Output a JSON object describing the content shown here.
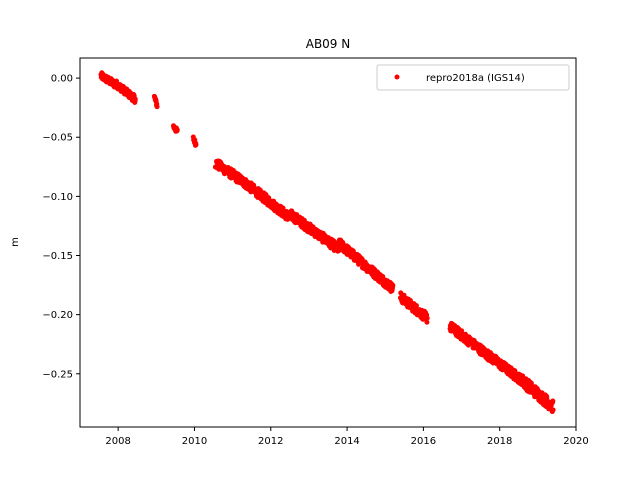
{
  "chart_data": {
    "type": "scatter",
    "title": "AB09 N",
    "xlabel": "",
    "ylabel": "m",
    "xlim": [
      2007.0,
      2020.0
    ],
    "ylim": [
      -0.295,
      0.017
    ],
    "xticks": [
      2008,
      2010,
      2012,
      2014,
      2016,
      2018,
      2020
    ],
    "xtick_labels": [
      "2008",
      "2010",
      "2012",
      "2014",
      "2016",
      "2018",
      "2020"
    ],
    "yticks": [
      0.0,
      -0.05,
      -0.1,
      -0.15,
      -0.2,
      -0.25
    ],
    "ytick_labels": [
      "0.00",
      "−0.05",
      "−0.10",
      "−0.15",
      "−0.20",
      "−0.25"
    ],
    "grid": false,
    "legend_position": "top-right",
    "series": [
      {
        "name": "repro2018a (IGS14)",
        "color": "#ff0000",
        "marker": "circle",
        "segments": [
          {
            "x0": 2007.55,
            "x1": 2007.95,
            "y0": 0.002,
            "y1": -0.006,
            "noise": 0.003
          },
          {
            "x0": 2007.95,
            "x1": 2008.45,
            "y0": -0.005,
            "y1": -0.018,
            "noise": 0.003
          },
          {
            "x0": 2008.95,
            "x1": 2009.02,
            "y0": -0.016,
            "y1": -0.023,
            "noise": 0.002
          },
          {
            "x0": 2009.45,
            "x1": 2009.55,
            "y0": -0.041,
            "y1": -0.045,
            "noise": 0.002
          },
          {
            "x0": 2009.97,
            "x1": 2010.04,
            "y0": -0.051,
            "y1": -0.056,
            "noise": 0.002
          },
          {
            "x0": 2010.55,
            "x1": 2011.3,
            "y0": -0.072,
            "y1": -0.088,
            "noise": 0.004
          },
          {
            "x0": 2011.3,
            "x1": 2012.5,
            "y0": -0.088,
            "y1": -0.118,
            "noise": 0.004
          },
          {
            "x0": 2012.5,
            "x1": 2013.8,
            "y0": -0.115,
            "y1": -0.145,
            "noise": 0.004
          },
          {
            "x0": 2013.8,
            "x1": 2015.2,
            "y0": -0.14,
            "y1": -0.178,
            "noise": 0.004
          },
          {
            "x0": 2015.4,
            "x1": 2016.1,
            "y0": -0.185,
            "y1": -0.203,
            "noise": 0.004
          },
          {
            "x0": 2016.7,
            "x1": 2017.6,
            "y0": -0.21,
            "y1": -0.232,
            "noise": 0.004
          },
          {
            "x0": 2017.6,
            "x1": 2018.6,
            "y0": -0.232,
            "y1": -0.256,
            "noise": 0.004
          },
          {
            "x0": 2018.6,
            "x1": 2019.4,
            "y0": -0.256,
            "y1": -0.278,
            "noise": 0.005
          }
        ]
      }
    ]
  }
}
